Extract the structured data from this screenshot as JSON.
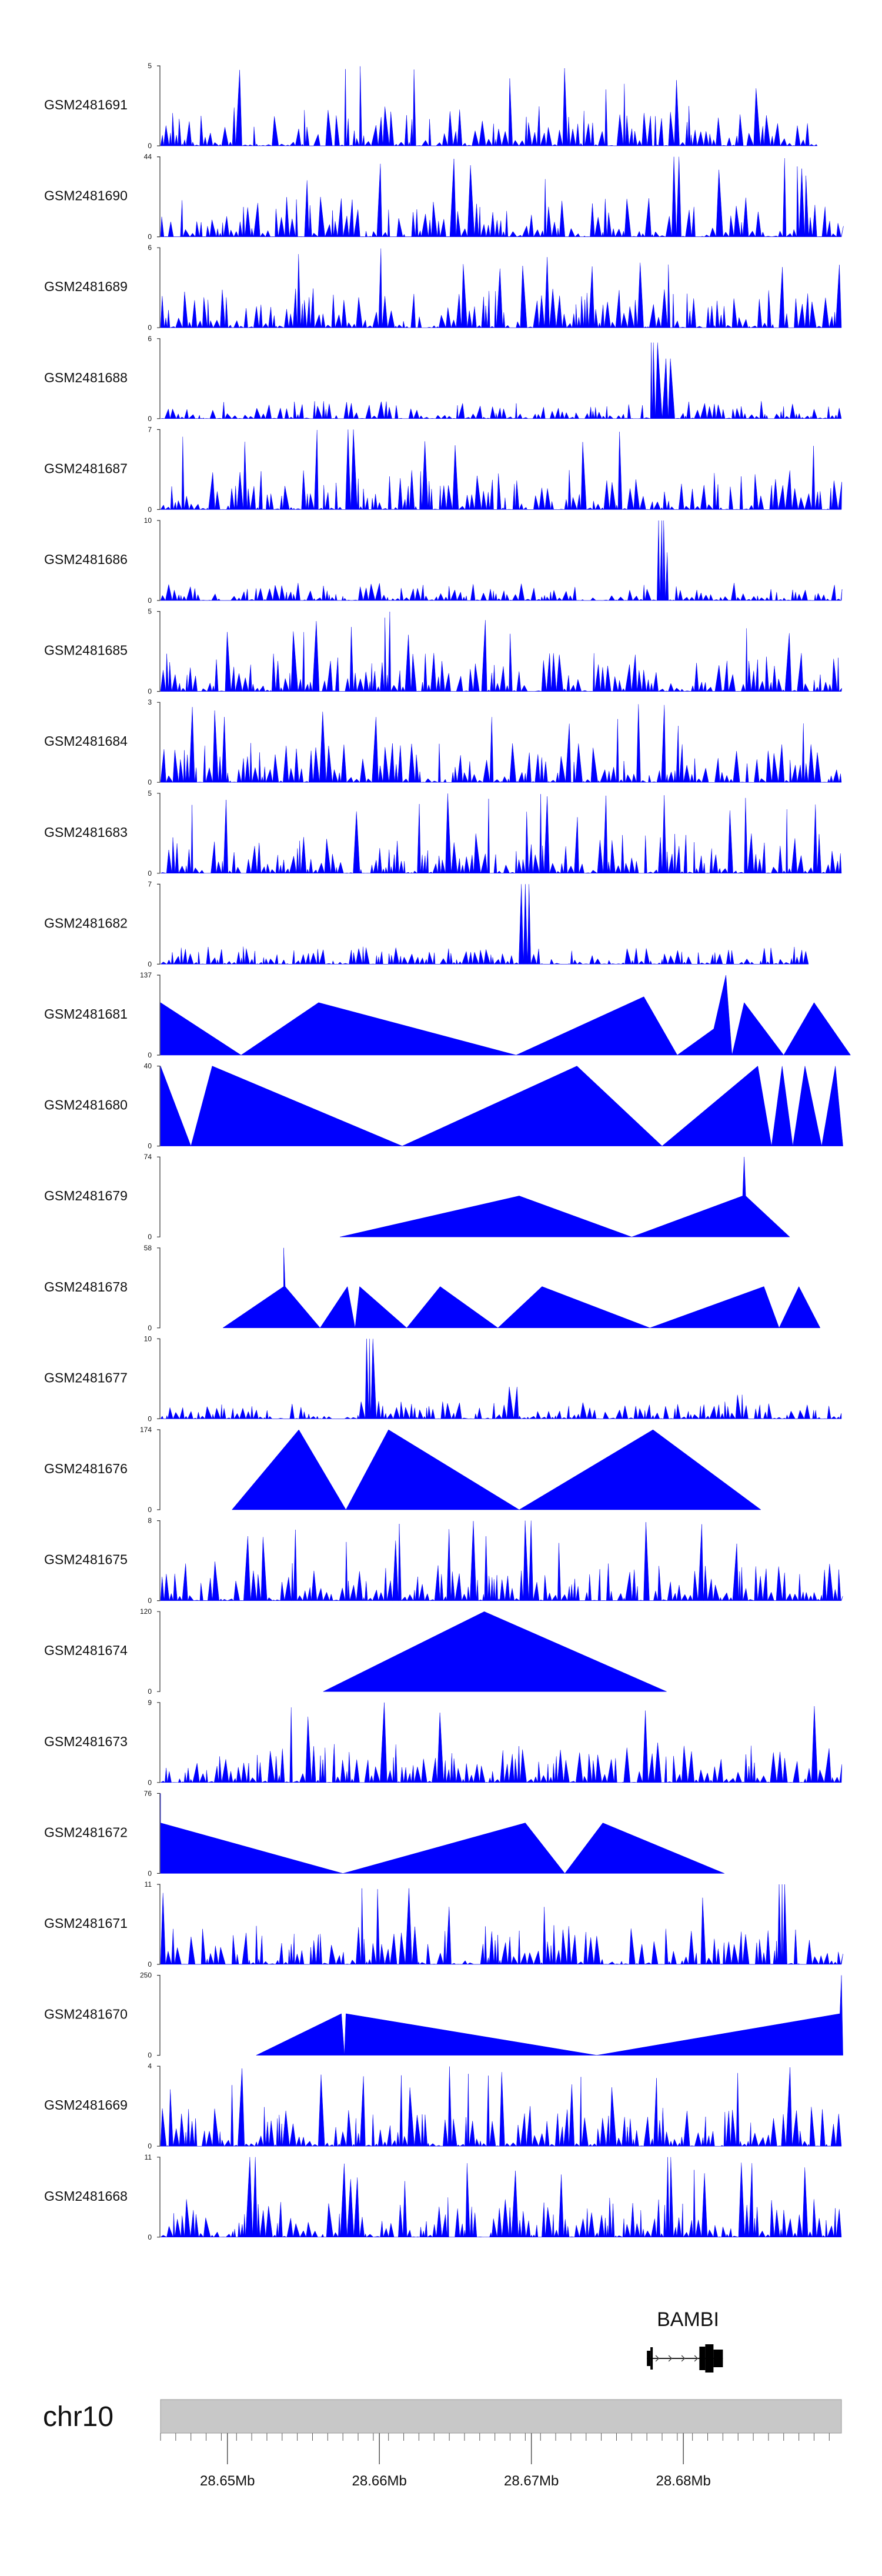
{
  "chart_data": {
    "type": "area",
    "title": "",
    "chromosome": "chr10",
    "x_range_mb": [
      28.6456,
      28.6904
    ],
    "x_ticks": [
      28.6456,
      28.6466,
      28.6476,
      28.6486,
      28.6496,
      28.6506,
      28.6516,
      28.6526,
      28.6536,
      28.6546,
      28.6556,
      28.6566,
      28.6576,
      28.6586,
      28.6596,
      28.6606,
      28.6616,
      28.6626,
      28.6636,
      28.6646,
      28.6656,
      28.6666,
      28.6676,
      28.6686,
      28.6696,
      28.6706,
      28.6716,
      28.6726,
      28.6736,
      28.6746,
      28.6756,
      28.6766,
      28.6776,
      28.6786,
      28.6796,
      28.6806,
      28.6816,
      28.6826,
      28.6836,
      28.6846,
      28.6856,
      28.6866,
      28.6876,
      28.6886,
      28.6896
    ],
    "x_tick_labels": [
      {
        "value": 28.65,
        "label": "28.65Mb"
      },
      {
        "value": 28.66,
        "label": "28.66Mb"
      },
      {
        "value": 28.67,
        "label": "28.67Mb"
      },
      {
        "value": 28.68,
        "label": "28.68Mb"
      }
    ],
    "gene": {
      "name": "BAMBI",
      "strand": "+",
      "start_mb": 28.6776,
      "end_mb": 28.6826
    },
    "series": [
      {
        "name": "GSM2481691",
        "ylim": [
          0,
          5
        ],
        "style": "spiky",
        "peaks": []
      },
      {
        "name": "GSM2481690",
        "ylim": [
          0,
          44
        ],
        "style": "sparse",
        "peaks": [
          [
            28.6796,
            44
          ]
        ]
      },
      {
        "name": "GSM2481689",
        "ylim": [
          0,
          6
        ],
        "style": "spiky",
        "peaks": []
      },
      {
        "name": "GSM2481688",
        "ylim": [
          0,
          6
        ],
        "style": "low",
        "peaks": [
          [
            28.6781,
            5.7
          ],
          [
            28.6785,
            5.0
          ],
          [
            28.6789,
            4.5
          ]
        ]
      },
      {
        "name": "GSM2481687",
        "ylim": [
          0,
          7
        ],
        "style": "spiky",
        "peaks": [
          [
            28.6582,
            7
          ]
        ]
      },
      {
        "name": "GSM2481686",
        "ylim": [
          0,
          10
        ],
        "style": "low",
        "peaks": [
          [
            28.6784,
            10
          ],
          [
            28.6788,
            6
          ]
        ]
      },
      {
        "name": "GSM2481685",
        "ylim": [
          0,
          5
        ],
        "style": "spiky",
        "peaks": []
      },
      {
        "name": "GSM2481684",
        "ylim": [
          0,
          3
        ],
        "style": "spiky",
        "peaks": []
      },
      {
        "name": "GSM2481683",
        "ylim": [
          0,
          5
        ],
        "style": "spiky",
        "peaks": []
      },
      {
        "name": "GSM2481682",
        "ylim": [
          0,
          7
        ],
        "style": "low",
        "peaks": [
          [
            28.6696,
            7
          ]
        ]
      },
      {
        "name": "GSM2481681",
        "ylim": [
          0,
          137
        ],
        "style": "tri",
        "points": [
          [
            28.6456,
            90
          ],
          [
            28.6509,
            0
          ],
          [
            28.656,
            90
          ],
          [
            28.669,
            0
          ],
          [
            28.6774,
            100
          ],
          [
            28.6796,
            0
          ],
          [
            28.682,
            45
          ],
          [
            28.6828,
            137
          ],
          [
            28.6832,
            0
          ],
          [
            28.684,
            90
          ],
          [
            28.6866,
            0
          ],
          [
            28.6886,
            90
          ],
          [
            28.691,
            0
          ]
        ]
      },
      {
        "name": "GSM2481680",
        "ylim": [
          0,
          40
        ],
        "style": "tri",
        "points": [
          [
            28.6456,
            40
          ],
          [
            28.6476,
            0
          ],
          [
            28.649,
            40
          ],
          [
            28.6615,
            0
          ],
          [
            28.673,
            40
          ],
          [
            28.6786,
            0
          ],
          [
            28.6849,
            40
          ],
          [
            28.6858,
            0
          ],
          [
            28.6865,
            40
          ],
          [
            28.6872,
            0
          ],
          [
            28.688,
            40
          ],
          [
            28.6891,
            0
          ],
          [
            28.69,
            40
          ],
          [
            28.6905,
            0
          ]
        ]
      },
      {
        "name": "GSM2481679",
        "ylim": [
          0,
          74
        ],
        "style": "tri",
        "points": [
          [
            28.6574,
            0
          ],
          [
            28.6692,
            38
          ],
          [
            28.6766,
            0
          ],
          [
            28.6839,
            38
          ],
          [
            28.684,
            74
          ],
          [
            28.6841,
            38
          ],
          [
            28.687,
            0
          ]
        ]
      },
      {
        "name": "GSM2481678",
        "ylim": [
          0,
          58
        ],
        "style": "tri",
        "points": [
          [
            28.6497,
            0
          ],
          [
            28.6537,
            30
          ],
          [
            28.6537,
            58
          ],
          [
            28.6538,
            30
          ],
          [
            28.6561,
            0
          ],
          [
            28.6579,
            30
          ],
          [
            28.6584,
            0
          ],
          [
            28.6587,
            30
          ],
          [
            28.6618,
            0
          ],
          [
            28.664,
            30
          ],
          [
            28.6678,
            0
          ],
          [
            28.6707,
            30
          ],
          [
            28.6778,
            0
          ],
          [
            28.6853,
            30
          ],
          [
            28.6863,
            0
          ],
          [
            28.6876,
            30
          ],
          [
            28.689,
            0
          ]
        ]
      },
      {
        "name": "GSM2481677",
        "ylim": [
          0,
          10
        ],
        "style": "low",
        "peaks": [
          [
            28.6594,
            10
          ],
          [
            28.6688,
            4
          ],
          [
            28.6836,
            3
          ]
        ]
      },
      {
        "name": "GSM2481676",
        "ylim": [
          0,
          174
        ],
        "style": "tri",
        "points": [
          [
            28.6503,
            0
          ],
          [
            28.6547,
            174
          ],
          [
            28.6578,
            0
          ],
          [
            28.6606,
            174
          ],
          [
            28.6692,
            0
          ],
          [
            28.678,
            174
          ],
          [
            28.6851,
            0
          ]
        ]
      },
      {
        "name": "GSM2481675",
        "ylim": [
          0,
          8
        ],
        "style": "spiky",
        "peaks": [
          [
            28.6698,
            8
          ]
        ]
      },
      {
        "name": "GSM2481674",
        "ylim": [
          0,
          120
        ],
        "style": "tri",
        "points": [
          [
            28.6563,
            0
          ],
          [
            28.6669,
            120
          ],
          [
            28.6789,
            0
          ]
        ]
      },
      {
        "name": "GSM2481673",
        "ylim": [
          0,
          9
        ],
        "style": "spiky",
        "peaks": [
          [
            28.6601,
            9
          ]
        ]
      },
      {
        "name": "GSM2481672",
        "ylim": [
          0,
          76
        ],
        "style": "tri",
        "points": [
          [
            28.6456,
            76
          ],
          [
            28.6456,
            48
          ],
          [
            28.6576,
            0
          ],
          [
            28.6696,
            48
          ],
          [
            28.6722,
            0
          ],
          [
            28.6747,
            48
          ],
          [
            28.6827,
            0
          ]
        ]
      },
      {
        "name": "GSM2481671",
        "ylim": [
          0,
          11
        ],
        "style": "spiky",
        "peaks": [
          [
            28.6866,
            11
          ]
        ]
      },
      {
        "name": "GSM2481670",
        "ylim": [
          0,
          250
        ],
        "style": "tri",
        "points": [
          [
            28.6519,
            0
          ],
          [
            28.6575,
            130
          ],
          [
            28.6577,
            0
          ],
          [
            28.6578,
            130
          ],
          [
            28.6743,
            0
          ],
          [
            28.6903,
            130
          ],
          [
            28.6904,
            250
          ],
          [
            28.6905,
            0
          ]
        ]
      },
      {
        "name": "GSM2481669",
        "ylim": [
          0,
          4
        ],
        "style": "spiky",
        "peaks": []
      },
      {
        "name": "GSM2481668",
        "ylim": [
          0,
          11
        ],
        "style": "spiky",
        "peaks": [
          [
            28.6517,
            11
          ],
          [
            28.6791,
            11
          ]
        ]
      }
    ]
  }
}
